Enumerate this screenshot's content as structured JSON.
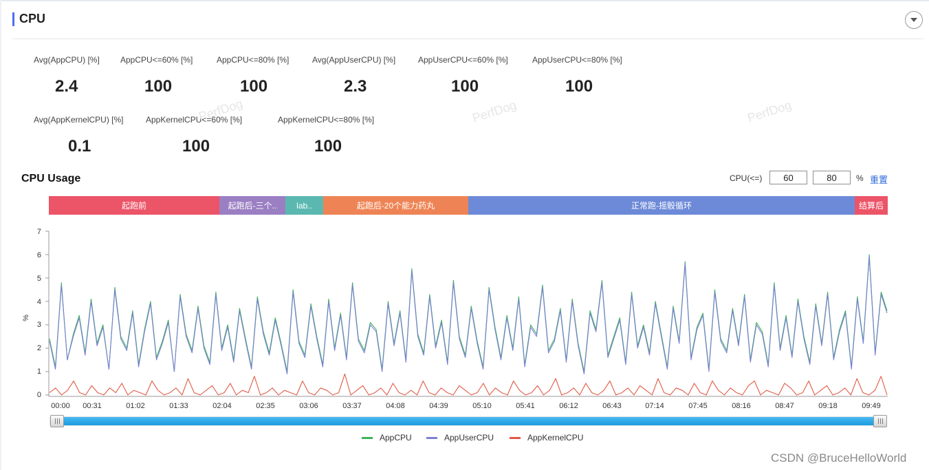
{
  "section": {
    "title": "CPU"
  },
  "stats": [
    {
      "label": "Avg(AppCPU) [%]",
      "value": "2.4"
    },
    {
      "label": "AppCPU<=60% [%]",
      "value": "100"
    },
    {
      "label": "AppCPU<=80% [%]",
      "value": "100"
    },
    {
      "label": "Avg(AppUserCPU) [%]",
      "value": "2.3"
    },
    {
      "label": "AppUserCPU<=60% [%]",
      "value": "100"
    },
    {
      "label": "AppUserCPU<=80% [%]",
      "value": "100"
    },
    {
      "label": "Avg(AppKernelCPU) [%]",
      "value": "0.1"
    },
    {
      "label": "AppKernelCPU<=60% [%]",
      "value": "100"
    },
    {
      "label": "AppKernelCPU<=80% [%]",
      "value": "100"
    }
  ],
  "watermark_text": "PerfDog",
  "usage": {
    "title": "CPU Usage",
    "threshold_label": "CPU(<=)",
    "threshold_1": "60",
    "threshold_2": "80",
    "unit": "%",
    "reset_label": "重置"
  },
  "stages": [
    {
      "label": "起跑前",
      "color": "#ec5468"
    },
    {
      "label": "起跑后-三个..",
      "color": "#9b7fc3"
    },
    {
      "label": "lab..",
      "color": "#5bb8b0"
    },
    {
      "label": "起跑后-20个能力药丸",
      "color": "#ee8455"
    },
    {
      "label": "正常跑-摇骰循环",
      "color": "#6d8ad8"
    },
    {
      "label": "结算后",
      "color": "#ec5468"
    }
  ],
  "chart_data": {
    "type": "line",
    "ylabel": "%",
    "ylim": [
      0,
      7
    ],
    "yticks": [
      "0",
      "1",
      "2",
      "3",
      "4",
      "5",
      "6",
      "7"
    ],
    "x_tick_labels": [
      "00:00",
      "00:31",
      "01:02",
      "01:33",
      "02:04",
      "02:35",
      "03:06",
      "03:37",
      "04:08",
      "04:39",
      "05:10",
      "05:41",
      "06:12",
      "06:43",
      "07:14",
      "07:45",
      "08:16",
      "08:47",
      "09:18",
      "09:49"
    ],
    "duration_seconds": 600,
    "series": [
      {
        "name": "AppCPU",
        "color": "#3cb15a",
        "values": [
          2.4,
          1.2,
          4.8,
          1.5,
          2.6,
          3.4,
          1.8,
          4.1,
          2.2,
          3.0,
          1.1,
          4.6,
          2.5,
          2.0,
          3.6,
          1.3,
          2.8,
          4.0,
          1.6,
          2.3,
          3.2,
          1.0,
          4.3,
          2.6,
          1.9,
          3.8,
          2.1,
          1.4,
          4.4,
          2.0,
          3.0,
          1.5,
          3.7,
          2.4,
          1.2,
          4.2,
          2.7,
          1.8,
          3.3,
          2.2,
          1.0,
          4.5,
          2.3,
          1.7,
          3.9,
          2.5,
          1.3,
          4.1,
          2.0,
          3.5,
          1.6,
          4.8,
          2.4,
          1.9,
          3.1,
          2.8,
          1.1,
          4.0,
          2.2,
          3.6,
          1.5,
          5.4,
          2.6,
          1.8,
          4.3,
          2.1,
          3.2,
          1.4,
          4.9,
          2.5,
          1.7,
          3.8,
          2.3,
          1.2,
          4.6,
          2.9,
          1.6,
          3.4,
          2.0,
          4.2,
          1.3,
          3.0,
          2.6,
          4.7,
          1.9,
          2.4,
          3.7,
          1.5,
          4.1,
          2.2,
          1.0,
          3.6,
          2.8,
          4.9,
          1.7,
          2.5,
          3.3,
          1.4,
          4.4,
          2.1,
          3.0,
          1.8,
          4.0,
          2.6,
          1.2,
          3.8,
          2.3,
          5.7,
          1.6,
          2.9,
          3.5,
          1.1,
          4.5,
          2.4,
          1.9,
          3.7,
          2.2,
          4.3,
          1.5,
          3.1,
          2.7,
          1.3,
          4.8,
          2.0,
          3.4,
          1.7,
          4.1,
          2.5,
          1.4,
          3.9,
          2.2,
          4.4,
          1.6,
          2.8,
          3.6,
          1.2,
          4.2,
          2.3,
          6.0,
          1.8,
          4.4,
          3.6
        ]
      },
      {
        "name": "AppUserCPU",
        "color": "#7b7fd6",
        "values": [
          2.3,
          1.1,
          4.7,
          1.5,
          2.5,
          3.3,
          1.7,
          4.0,
          2.1,
          2.9,
          1.1,
          4.5,
          2.4,
          1.9,
          3.5,
          1.2,
          2.7,
          3.9,
          1.5,
          2.2,
          3.1,
          1.0,
          4.2,
          2.5,
          1.8,
          3.7,
          2.0,
          1.3,
          4.3,
          1.9,
          2.9,
          1.4,
          3.6,
          2.3,
          1.1,
          4.1,
          2.6,
          1.7,
          3.2,
          2.1,
          0.9,
          4.4,
          2.2,
          1.6,
          3.8,
          2.4,
          1.2,
          4.0,
          1.9,
          3.4,
          1.5,
          4.7,
          2.3,
          1.8,
          3.0,
          2.7,
          1.0,
          3.9,
          2.1,
          3.5,
          1.4,
          5.3,
          2.5,
          1.7,
          4.2,
          2.0,
          3.1,
          1.3,
          4.8,
          2.4,
          1.6,
          3.7,
          2.2,
          1.1,
          4.5,
          2.8,
          1.5,
          3.3,
          1.9,
          4.1,
          1.2,
          2.9,
          2.5,
          4.6,
          1.8,
          2.3,
          3.6,
          1.4,
          4.0,
          2.1,
          0.9,
          3.5,
          2.7,
          4.8,
          1.6,
          2.4,
          3.2,
          1.3,
          4.3,
          2.0,
          2.9,
          1.7,
          3.9,
          2.5,
          1.1,
          3.7,
          2.2,
          5.6,
          1.5,
          2.8,
          3.4,
          1.0,
          4.4,
          2.3,
          1.8,
          3.6,
          2.1,
          4.2,
          1.4,
          3.0,
          2.6,
          1.2,
          4.7,
          1.9,
          3.3,
          1.6,
          4.0,
          2.4,
          1.3,
          3.8,
          2.1,
          4.3,
          1.5,
          2.7,
          3.5,
          1.1,
          4.1,
          2.2,
          5.9,
          1.7,
          4.3,
          3.5
        ]
      },
      {
        "name": "AppKernelCPU",
        "color": "#e05a45",
        "values": [
          0.1,
          0.3,
          0.0,
          0.2,
          0.6,
          0.1,
          0.0,
          0.4,
          0.1,
          0.0,
          0.3,
          0.1,
          0.5,
          0.0,
          0.2,
          0.1,
          0.0,
          0.6,
          0.2,
          0.0,
          0.1,
          0.3,
          0.0,
          0.7,
          0.1,
          0.0,
          0.2,
          0.4,
          0.0,
          0.1,
          0.5,
          0.0,
          0.2,
          0.1,
          0.8,
          0.0,
          0.1,
          0.3,
          0.0,
          0.2,
          0.1,
          0.0,
          0.6,
          0.1,
          0.0,
          0.3,
          0.2,
          0.0,
          0.1,
          0.9,
          0.0,
          0.2,
          0.4,
          0.0,
          0.1,
          0.3,
          0.0,
          0.5,
          0.1,
          0.0,
          0.2,
          0.0,
          0.6,
          0.1,
          0.0,
          0.3,
          0.1,
          0.0,
          0.4,
          0.2,
          0.0,
          0.1,
          0.5,
          0.0,
          0.3,
          0.1,
          0.0,
          0.6,
          0.2,
          0.0,
          0.1,
          0.4,
          0.0,
          0.2,
          0.7,
          0.0,
          0.1,
          0.3,
          0.0,
          0.5,
          0.1,
          0.0,
          0.2,
          0.6,
          0.0,
          0.1,
          0.3,
          0.0,
          0.4,
          0.2,
          0.0,
          0.7,
          0.1,
          0.0,
          0.3,
          0.2,
          0.0,
          0.5,
          0.1,
          0.0,
          0.6,
          0.2,
          0.0,
          0.3,
          0.1,
          0.0,
          0.4,
          0.6,
          0.0,
          0.2,
          0.1,
          0.0,
          0.5,
          0.3,
          0.0,
          0.1,
          0.6,
          0.0,
          0.2,
          0.4,
          0.0,
          0.1,
          0.3,
          0.0,
          0.7,
          0.1,
          0.0,
          0.2,
          0.8,
          0.0
        ]
      }
    ]
  },
  "legend": [
    "AppCPU",
    "AppUserCPU",
    "AppKernelCPU"
  ],
  "credit": "CSDN @BruceHelloWorld"
}
